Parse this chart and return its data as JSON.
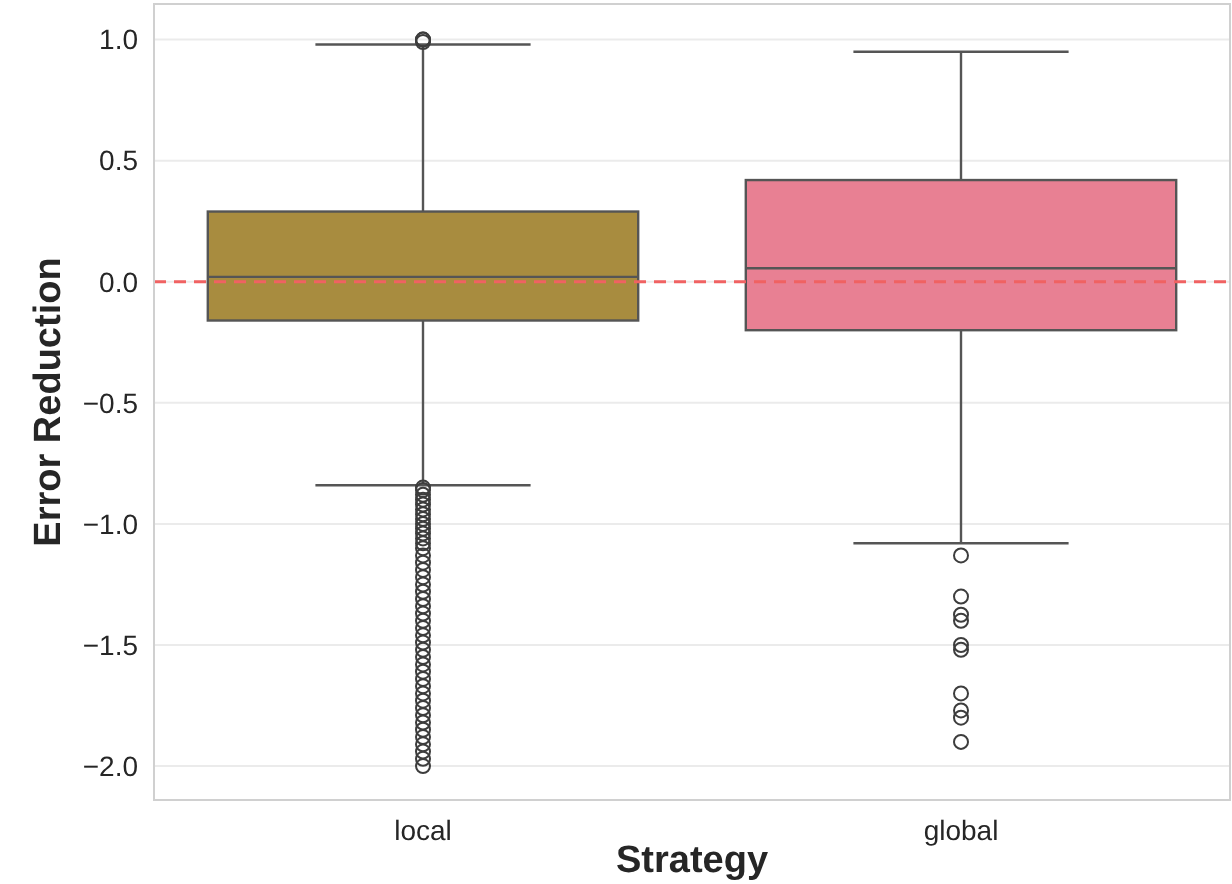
{
  "chart_data": {
    "type": "box",
    "xlabel": "Strategy",
    "ylabel": "Error Reduction",
    "categories": [
      "local",
      "global"
    ],
    "series": [
      {
        "color": "#a88c3f",
        "boxes": [
          {
            "low": -0.84,
            "q1": -0.16,
            "median": 0.02,
            "q3": 0.29,
            "high": 0.98,
            "outliers": [
              0.99,
              1.0,
              1.0,
              -0.85,
              -0.86,
              -0.88,
              -0.9,
              -0.92,
              -0.94,
              -0.96,
              -0.98,
              -1.0,
              -1.02,
              -1.04,
              -1.06,
              -1.08,
              -1.1,
              -1.13,
              -1.16,
              -1.19,
              -1.22,
              -1.25,
              -1.28,
              -1.31,
              -1.34,
              -1.37,
              -1.4,
              -1.43,
              -1.46,
              -1.49,
              -1.52,
              -1.55,
              -1.58,
              -1.61,
              -1.64,
              -1.67,
              -1.7,
              -1.73,
              -1.76,
              -1.79,
              -1.82,
              -1.85,
              -1.88,
              -1.91,
              -1.94,
              -1.97,
              -2.0
            ]
          },
          null
        ]
      },
      {
        "color": "#e88093",
        "boxes": [
          null,
          {
            "low": -1.08,
            "q1": -0.2,
            "median": 0.056,
            "q3": 0.42,
            "high": 0.95,
            "outliers": [
              -1.13,
              -1.3,
              -1.375,
              -1.4,
              -1.5,
              -1.52,
              -1.7,
              -1.77,
              -1.8,
              -1.9
            ]
          }
        ]
      }
    ],
    "ylim": [
      -2.14,
      1.147
    ],
    "yticks": [
      {
        "value": 1.0,
        "label": "1.0"
      },
      {
        "value": 0.5,
        "label": "0.5"
      },
      {
        "value": 0.0,
        "label": "0.0"
      },
      {
        "value": -0.5,
        "label": "−0.5"
      },
      {
        "value": -1.0,
        "label": "−1.0"
      },
      {
        "value": -1.5,
        "label": "−1.5"
      },
      {
        "value": -2.0,
        "label": "−2.0"
      }
    ],
    "grid": "y",
    "marker": "circle",
    "ref_lines": [
      {
        "axis": "y",
        "value": 0,
        "color": "#f06262",
        "line_style": "dashed"
      }
    ]
  }
}
